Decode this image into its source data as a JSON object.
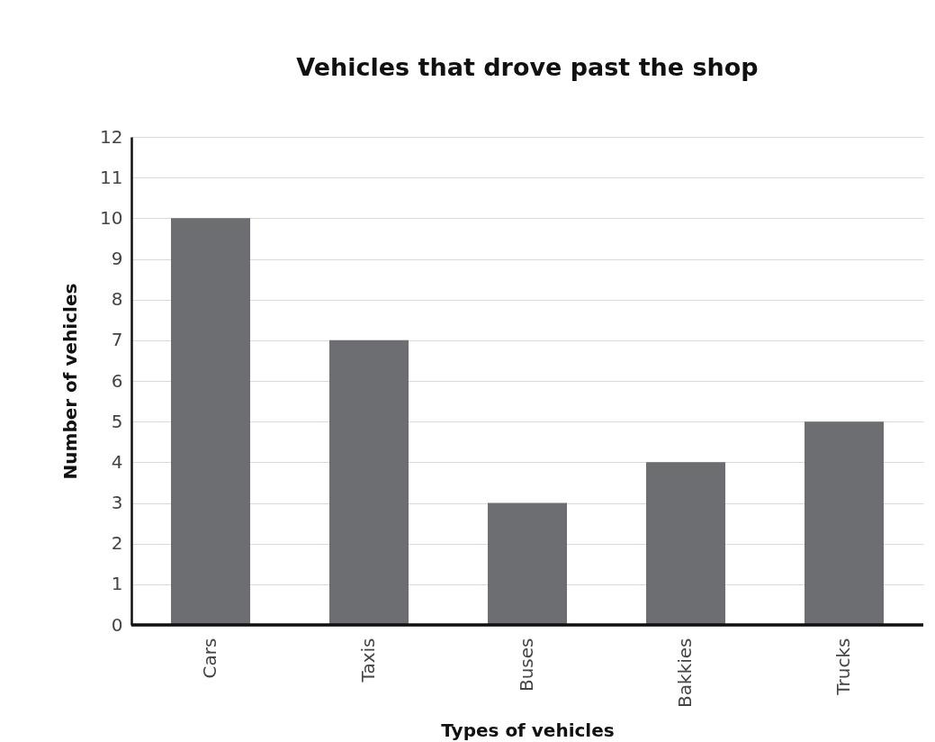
{
  "chart_data": {
    "type": "bar",
    "title": "Vehicles that drove past the shop",
    "xlabel": "Types of vehicles",
    "ylabel": "Number of vehicles",
    "categories": [
      "Cars",
      "Taxis",
      "Buses",
      "Bakkies",
      "Trucks"
    ],
    "values": [
      10,
      7,
      3,
      4,
      5
    ],
    "color": "#6d6e71",
    "ylim": [
      0,
      12
    ],
    "yticks": [
      0,
      1,
      2,
      3,
      4,
      5,
      6,
      7,
      8,
      9,
      10,
      11,
      12
    ],
    "grid": "y"
  }
}
